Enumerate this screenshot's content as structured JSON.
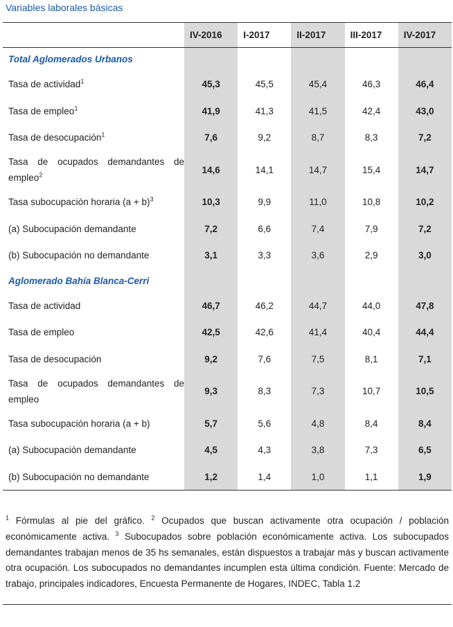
{
  "title": "Variables laborales básicas",
  "columns": [
    "IV-2016",
    "I-2017",
    "II-2017",
    "III-2017",
    "IV-2017"
  ],
  "sections": [
    {
      "name": "Total Aglomerados Urbanos",
      "rows": [
        {
          "label": "Tasa de actividad",
          "sup": "1",
          "values": [
            "45,3",
            "45,5",
            "45,4",
            "46,3",
            "46,4"
          ]
        },
        {
          "label": "Tasa de empleo",
          "sup": "1",
          "values": [
            "41,9",
            "41,3",
            "41,5",
            "42,4",
            "43,0"
          ]
        },
        {
          "label": "Tasa de desocupación",
          "sup": "1",
          "values": [
            "7,6",
            "9,2",
            "8,7",
            "8,3",
            "7,2"
          ]
        },
        {
          "label_line1": "Tasa de ocupados demandantes de",
          "label_line2": "empleo",
          "sup": "2",
          "values": [
            "14,6",
            "14,1",
            "14,7",
            "15,4",
            "14,7"
          ]
        },
        {
          "label": "Tasa subocupación horaria (a + b)",
          "sup": "3",
          "values": [
            "10,3",
            "9,9",
            "11,0",
            "10,8",
            "10,2"
          ]
        },
        {
          "label": "(a) Subocupación demandante",
          "values": [
            "7,2",
            "6,6",
            "7,4",
            "7,9",
            "7,2"
          ]
        },
        {
          "label": "(b) Subocupación no demandante",
          "values": [
            "3,1",
            "3,3",
            "3,6",
            "2,9",
            "3,0"
          ]
        }
      ]
    },
    {
      "name": "Aglomerado Bahía Blanca-Cerri",
      "rows": [
        {
          "label": "Tasa de actividad",
          "values": [
            "46,7",
            "46,2",
            "44,7",
            "44,0",
            "47,8"
          ]
        },
        {
          "label": "Tasa de empleo",
          "values": [
            "42,5",
            "42,6",
            "41,4",
            "40,4",
            "44,4"
          ]
        },
        {
          "label": "Tasa de desocupación",
          "values": [
            "9,2",
            "7,6",
            "7,5",
            "8,1",
            "7,1"
          ]
        },
        {
          "label_line1": "Tasa de ocupados demandantes de",
          "label_line2": "empleo",
          "values": [
            "9,3",
            "8,3",
            "7,3",
            "10,7",
            "10,5"
          ]
        },
        {
          "label": "Tasa subocupación horaria (a + b)",
          "values": [
            "5,7",
            "5,6",
            "4,8",
            "8,4",
            "8,4"
          ]
        },
        {
          "label": "(a) Subocupación demandante",
          "values": [
            "4,5",
            "4,3",
            "3,8",
            "7,3",
            "6,5"
          ]
        },
        {
          "label": "(b) Subocupación no demandante",
          "values": [
            "1,2",
            "1,4",
            "1,0",
            "1,1",
            "1,9"
          ]
        }
      ]
    }
  ],
  "notes": {
    "sup1": "1",
    "text1": " Fórmulas al pie del gráfico. ",
    "sup2": "2",
    "text2": " Ocupados que buscan activamente otra ocupación / población económicamente activa. ",
    "sup3": "3",
    "text3": " Subocupados sobre población económicamente activa. Los subocupados demandantes trabajan menos de 35 hs semanales, están dispuestos a trabajar más y buscan activamente otra ocupación. Los subocupados no demandantes incumplen esta última condición. Fuente: Mercado de trabajo, principales indicadores, Encuesta Permanente de Hogares, INDEC, Tabla 1.2"
  },
  "colors": {
    "accent": "#1a5aa8",
    "shade": "#d9d9d9"
  }
}
